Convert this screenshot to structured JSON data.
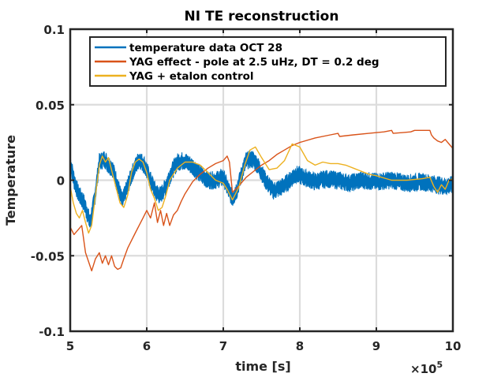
{
  "chart_data": {
    "type": "line",
    "title": "NI TE reconstruction",
    "xlabel": "time [s]",
    "ylabel": "Temperature",
    "x_exponent_label": "×10",
    "x_exponent_power": "5",
    "xlim": [
      5,
      10
    ],
    "ylim": [
      -0.1,
      0.1
    ],
    "x_ticks": [
      5,
      6,
      7,
      8,
      9,
      10
    ],
    "x_tick_labels": [
      "5",
      "6",
      "7",
      "8",
      "9",
      "10"
    ],
    "y_ticks": [
      -0.1,
      -0.05,
      0,
      0.05,
      0.1
    ],
    "y_tick_labels": [
      "-0.1",
      "-0.05",
      "0",
      "0.05",
      "0.1"
    ],
    "grid": true,
    "legend_position": "top",
    "series": [
      {
        "name": "temperature data OCT 28",
        "color": "#0072BD",
        "band_halfwidth": 0.0035,
        "x": [
          5.0,
          5.05,
          5.1,
          5.18,
          5.26,
          5.32,
          5.38,
          5.45,
          5.5,
          5.55,
          5.6,
          5.68,
          5.75,
          5.82,
          5.9,
          5.97,
          6.05,
          6.12,
          6.18,
          6.25,
          6.32,
          6.4,
          6.48,
          6.55,
          6.62,
          6.7,
          6.8,
          6.9,
          7.0,
          7.08,
          7.12,
          7.18,
          7.25,
          7.3,
          7.38,
          7.45,
          7.55,
          7.65,
          7.75,
          7.85,
          7.95,
          8.05,
          8.2,
          8.35,
          8.5,
          8.65,
          8.8,
          9.0,
          9.2,
          9.4,
          9.6,
          9.8,
          9.9,
          10.0
        ],
        "y": [
          0.012,
          0.0,
          -0.008,
          -0.015,
          -0.028,
          -0.012,
          0.012,
          0.014,
          0.01,
          0.008,
          0.0,
          -0.014,
          -0.004,
          0.006,
          0.014,
          0.01,
          0.0,
          -0.008,
          -0.01,
          -0.004,
          0.005,
          0.012,
          0.013,
          0.011,
          0.008,
          0.004,
          0.0,
          0.0,
          0.002,
          -0.008,
          -0.012,
          -0.006,
          0.006,
          0.013,
          0.014,
          0.01,
          0.0,
          -0.007,
          -0.005,
          -0.001,
          0.004,
          0.002,
          -0.001,
          0.001,
          0.0,
          -0.002,
          0.0,
          -0.001,
          0.0,
          -0.002,
          -0.001,
          -0.003,
          -0.004,
          -0.003
        ]
      },
      {
        "name": "YAG effect - pole at 2.5 uHz, DT = 0.2 deg",
        "color": "#D95319",
        "x": [
          5.0,
          5.05,
          5.1,
          5.15,
          5.2,
          5.28,
          5.33,
          5.38,
          5.42,
          5.46,
          5.5,
          5.54,
          5.58,
          5.62,
          5.66,
          5.7,
          5.75,
          5.8,
          5.85,
          5.9,
          5.95,
          6.0,
          6.05,
          6.1,
          6.14,
          6.18,
          6.22,
          6.26,
          6.3,
          6.35,
          6.4,
          6.45,
          6.5,
          6.6,
          6.7,
          6.8,
          6.9,
          7.0,
          7.05,
          7.08,
          7.12,
          7.2,
          7.3,
          7.4,
          7.5,
          7.6,
          7.7,
          7.8,
          7.9,
          8.0,
          8.2,
          8.4,
          8.5,
          8.52,
          8.7,
          8.9,
          9.1,
          9.2,
          9.22,
          9.45,
          9.5,
          9.7,
          9.72,
          9.75,
          9.8,
          9.85,
          9.9,
          9.95,
          10.0
        ],
        "y": [
          -0.031,
          -0.036,
          -0.033,
          -0.03,
          -0.048,
          -0.06,
          -0.052,
          -0.048,
          -0.055,
          -0.05,
          -0.056,
          -0.05,
          -0.057,
          -0.059,
          -0.058,
          -0.052,
          -0.045,
          -0.04,
          -0.035,
          -0.03,
          -0.025,
          -0.02,
          -0.025,
          -0.015,
          -0.028,
          -0.02,
          -0.03,
          -0.022,
          -0.03,
          -0.023,
          -0.02,
          -0.014,
          -0.009,
          -0.001,
          0.004,
          0.008,
          0.011,
          0.013,
          0.016,
          0.012,
          -0.008,
          -0.004,
          0.002,
          0.006,
          0.01,
          0.013,
          0.017,
          0.02,
          0.023,
          0.025,
          0.028,
          0.03,
          0.031,
          0.029,
          0.03,
          0.031,
          0.032,
          0.033,
          0.031,
          0.032,
          0.033,
          0.033,
          0.03,
          0.028,
          0.026,
          0.025,
          0.027,
          0.024,
          0.021
        ]
      },
      {
        "name": "YAG + etalon control",
        "color": "#EDB120",
        "x": [
          5.0,
          5.04,
          5.08,
          5.12,
          5.16,
          5.2,
          5.24,
          5.28,
          5.33,
          5.38,
          5.42,
          5.46,
          5.5,
          5.55,
          5.6,
          5.65,
          5.7,
          5.75,
          5.8,
          5.85,
          5.9,
          5.95,
          6.0,
          6.05,
          6.1,
          6.15,
          6.2,
          6.25,
          6.3,
          6.35,
          6.4,
          6.5,
          6.6,
          6.7,
          6.8,
          6.9,
          7.0,
          7.05,
          7.12,
          7.2,
          7.28,
          7.35,
          7.42,
          7.5,
          7.6,
          7.7,
          7.8,
          7.9,
          8.0,
          8.1,
          8.2,
          8.3,
          8.4,
          8.5,
          8.6,
          8.7,
          8.8,
          8.9,
          9.0,
          9.2,
          9.4,
          9.6,
          9.7,
          9.75,
          9.8,
          9.85,
          9.9,
          9.95,
          10.0
        ],
        "y": [
          -0.004,
          -0.015,
          -0.022,
          -0.025,
          -0.02,
          -0.028,
          -0.035,
          -0.03,
          -0.01,
          0.01,
          0.016,
          0.012,
          0.015,
          0.005,
          -0.005,
          -0.015,
          -0.018,
          -0.01,
          0.005,
          0.012,
          0.014,
          0.012,
          0.005,
          -0.006,
          -0.012,
          -0.02,
          -0.018,
          -0.01,
          0.0,
          0.004,
          0.008,
          0.012,
          0.012,
          0.01,
          0.005,
          0.0,
          -0.002,
          -0.006,
          -0.013,
          -0.005,
          0.01,
          0.02,
          0.022,
          0.015,
          0.007,
          0.008,
          0.013,
          0.024,
          0.022,
          0.013,
          0.01,
          0.012,
          0.011,
          0.011,
          0.01,
          0.008,
          0.006,
          0.004,
          0.003,
          0.0,
          0.0,
          0.001,
          0.002,
          -0.004,
          -0.008,
          -0.003,
          -0.006,
          0.0,
          0.001
        ]
      }
    ]
  }
}
